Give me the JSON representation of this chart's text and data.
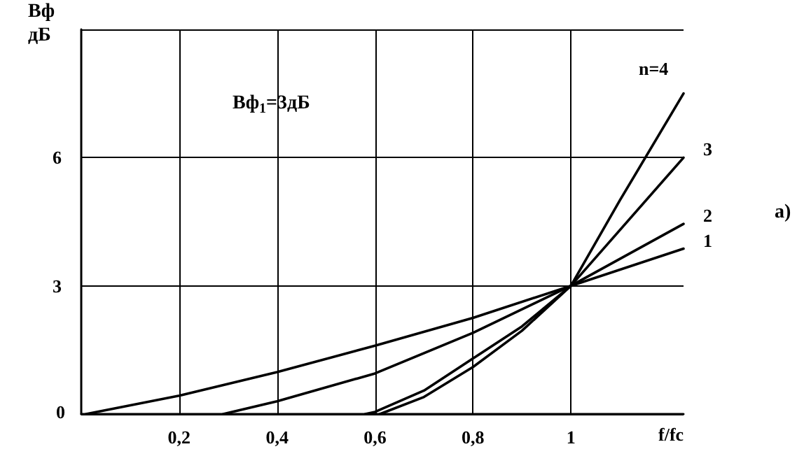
{
  "chart_data": {
    "type": "line",
    "xlabel": "f/fc",
    "ylabel": "Вф дБ",
    "annotations": [
      "Вф$_{1}$=3дБ",
      "а)"
    ],
    "xlim": [
      0,
      1.23
    ],
    "xticks": [
      {
        "value": 0.2,
        "label": "0,2"
      },
      {
        "value": 0.4,
        "label": "0,4"
      },
      {
        "value": 0.6,
        "label": "0,6"
      },
      {
        "value": 0.8,
        "label": "0,8"
      },
      1
    ],
    "ylim": [
      0,
      9
    ],
    "yticks": [
      0,
      3,
      6,
      {
        "value": 9,
        "label": null
      }
    ],
    "grid": true,
    "legend": false,
    "marker": "none",
    "line_style": "solid",
    "series": [
      {
        "name": "n=4",
        "color": "#000000",
        "x": [
          0.61,
          0.7,
          0.8,
          0.9,
          1,
          1.1,
          1.23
        ],
        "values": [
          0,
          0.4,
          1.1,
          1.95,
          3,
          5,
          7.5
        ]
      },
      {
        "name": "3",
        "color": "#000000",
        "x": [
          0.58,
          0.6,
          0.7,
          0.8,
          0.9,
          1,
          1.23
        ],
        "values": [
          0,
          0.05,
          0.55,
          1.3,
          2.05,
          3,
          6
        ]
      },
      {
        "name": "2",
        "color": "#000000",
        "x": [
          0.29,
          0.4,
          0.6,
          0.8,
          1,
          1.23
        ],
        "values": [
          0,
          0.3,
          0.95,
          1.9,
          3,
          4.45
        ]
      },
      {
        "name": "1",
        "color": "#000000",
        "x": [
          0.01,
          0.2,
          0.4,
          0.6,
          0.8,
          1,
          1.23
        ],
        "values": [
          0,
          0.43,
          0.98,
          1.6,
          2.25,
          3,
          3.87
        ]
      }
    ]
  }
}
